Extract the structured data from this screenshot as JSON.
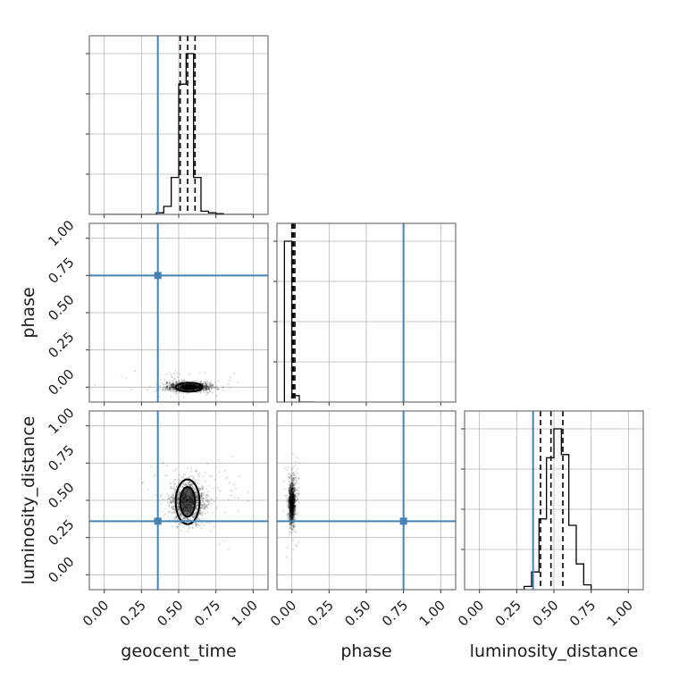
{
  "chart_data": {
    "type": "corner",
    "parameters": [
      "geocent_time",
      "phase",
      "luminosity_distance"
    ],
    "axis_range": [
      -0.1,
      1.1
    ],
    "tick_values": [
      0.0,
      0.25,
      0.5,
      0.75,
      1.0
    ],
    "tick_labels": [
      "0.00",
      "0.25",
      "0.50",
      "0.75",
      "1.00"
    ],
    "grid": true,
    "truths": {
      "geocent_time": 0.36,
      "phase": 0.75,
      "luminosity_distance": 0.36
    },
    "colors": {
      "truth": "#4682b4",
      "histogram": "#000000",
      "samples": "#000000",
      "grid": "#b5b5b5"
    },
    "diagonal": [
      {
        "parameter": "geocent_time",
        "bin_edges": [
          0.0,
          0.05,
          0.1,
          0.15,
          0.2,
          0.25,
          0.3,
          0.35,
          0.4,
          0.45,
          0.5,
          0.55,
          0.6,
          0.65,
          0.7,
          0.75,
          0.8,
          0.85,
          0.9,
          0.95,
          1.0
        ],
        "counts": [
          0,
          0,
          0,
          0,
          0,
          0,
          0,
          0.01,
          0.05,
          0.23,
          0.81,
          1.0,
          0.23,
          0.02,
          0.01,
          0.005,
          0,
          0,
          0,
          0
        ],
        "quantiles": [
          0.51,
          0.56,
          0.61
        ]
      },
      {
        "parameter": "phase",
        "bin_edges": [
          -0.05,
          0.0,
          0.05,
          0.1,
          0.15
        ],
        "counts": [
          1.0,
          0.04,
          0,
          0
        ],
        "quantiles": [
          0.0,
          0.01,
          0.02
        ]
      },
      {
        "parameter": "luminosity_distance",
        "bin_edges": [
          0.0,
          0.05,
          0.1,
          0.15,
          0.2,
          0.25,
          0.3,
          0.35,
          0.4,
          0.45,
          0.5,
          0.55,
          0.6,
          0.65,
          0.7,
          0.75,
          0.8,
          0.85,
          0.9,
          0.95,
          1.0
        ],
        "counts": [
          0,
          0,
          0,
          0,
          0,
          0,
          0.02,
          0.11,
          0.44,
          0.82,
          1.0,
          0.84,
          0.4,
          0.16,
          0.03,
          0,
          0,
          0,
          0,
          0
        ],
        "quantiles": [
          0.41,
          0.48,
          0.56
        ]
      }
    ],
    "scatter": [
      {
        "x_parameter": "geocent_time",
        "y_parameter": "phase",
        "x_center": 0.57,
        "x_spread": 0.07,
        "x_tail": 0.4,
        "y_center": 0.0,
        "y_spread": 0.015,
        "y_tail": 0.12,
        "contours": [
          {
            "cx": 0.57,
            "cy": 0.0,
            "rx": 0.05,
            "ry": 0.012
          },
          {
            "cx": 0.57,
            "cy": 0.0,
            "rx": 0.09,
            "ry": 0.03
          }
        ]
      },
      {
        "x_parameter": "geocent_time",
        "y_parameter": "luminosity_distance",
        "x_center": 0.56,
        "x_spread": 0.055,
        "x_tail": 0.98,
        "y_center": 0.49,
        "y_spread": 0.07,
        "y_tail": 0.7,
        "contours": [
          {
            "cx": 0.56,
            "cy": 0.49,
            "rx": 0.05,
            "ry": 0.1
          },
          {
            "cx": 0.56,
            "cy": 0.49,
            "rx": 0.08,
            "ry": 0.15
          }
        ]
      },
      {
        "x_parameter": "phase",
        "y_parameter": "luminosity_distance",
        "x_center": 0.0,
        "x_spread": 0.01,
        "x_tail": 0.05,
        "y_center": 0.48,
        "y_spread": 0.07,
        "y_tail": 0.72,
        "contours": []
      }
    ]
  }
}
